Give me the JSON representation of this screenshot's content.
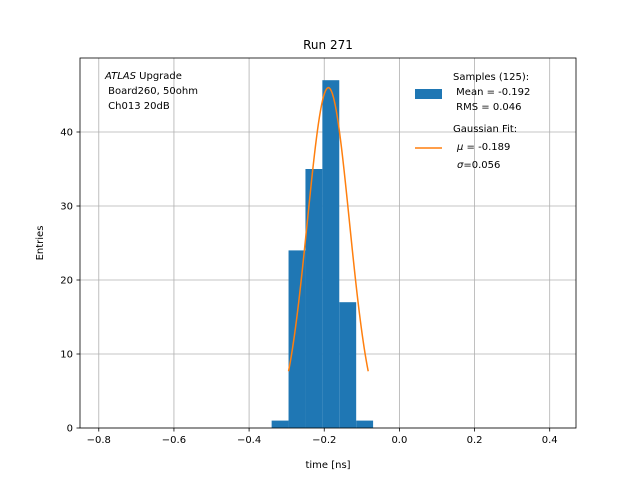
{
  "chart_data": {
    "type": "bar",
    "title": "Run 271",
    "xlabel": "time [ns]",
    "ylabel": "Entries",
    "xlim": [
      -0.85,
      0.47
    ],
    "ylim": [
      0,
      50
    ],
    "xticks": [
      -0.8,
      -0.6,
      -0.4,
      -0.2,
      0.0,
      0.2,
      0.4
    ],
    "xtick_labels": [
      "−0.8",
      "−0.6",
      "−0.4",
      "−0.2",
      "0.0",
      "0.2",
      "0.4"
    ],
    "yticks": [
      0,
      10,
      20,
      30,
      40
    ],
    "ytick_labels": [
      "0",
      "10",
      "20",
      "30",
      "40"
    ],
    "grid": true,
    "annotation": {
      "atlas": "ATLAS",
      "line1_rest": " Upgrade",
      "line2": " Board260, 50ohm",
      "line3": " Ch013 20dB"
    },
    "histogram": {
      "name": "Samples (125):",
      "color": "#1f77b4",
      "bin_edges": [
        -0.34,
        -0.295,
        -0.25,
        -0.205,
        -0.16,
        -0.115,
        -0.07,
        -0.025
      ],
      "counts": [
        1,
        24,
        35,
        47,
        17,
        1,
        0
      ]
    },
    "histogram_display_counts": [
      1,
      24,
      35,
      47,
      17,
      1
    ],
    "fit": {
      "name": "Gaussian Fit:",
      "color": "#ff7f0e",
      "amplitude": 46,
      "mu": -0.189,
      "sigma": 0.056,
      "x_range": [
        -0.295,
        -0.083
      ]
    },
    "legend": {
      "position": "top-right",
      "samples_lines": [
        "Samples (125):",
        " Mean = -0.192",
        " RMS = 0.046"
      ],
      "fit_line1": "Gaussian Fit:",
      "fit_mu_symbol": "μ",
      "fit_mu_rest": " = -0.189",
      "fit_sigma_symbol": "σ",
      "fit_sigma_rest": "=0.056"
    }
  }
}
